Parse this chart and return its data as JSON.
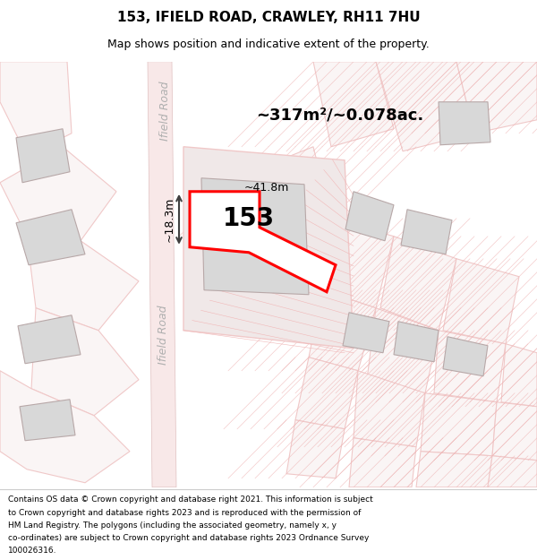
{
  "title": "153, IFIELD ROAD, CRAWLEY, RH11 7HU",
  "subtitle": "Map shows position and indicative extent of the property.",
  "footer_lines": [
    "Contains OS data © Crown copyright and database right 2021. This information is subject",
    "to Crown copyright and database rights 2023 and is reproduced with the permission of",
    "HM Land Registry. The polygons (including the associated geometry, namely x, y",
    "co-ordinates) are subject to Crown copyright and database rights 2023 Ordnance Survey",
    "100026316."
  ],
  "area_label": "~317m²/~0.078ac.",
  "width_label": "~41.8m",
  "height_label": "~18.3m",
  "property_number": "153",
  "title_fontsize": 11,
  "subtitle_fontsize": 9,
  "footer_fontsize": 6.5,
  "parcel_color": "#f0c8c8",
  "hatch_color": "#f0b8b8",
  "bld_fill": "#d8d8d8",
  "bld_edge": "#b8a8a8",
  "road_text": "#b0b0b0",
  "dim_color": "#404040"
}
